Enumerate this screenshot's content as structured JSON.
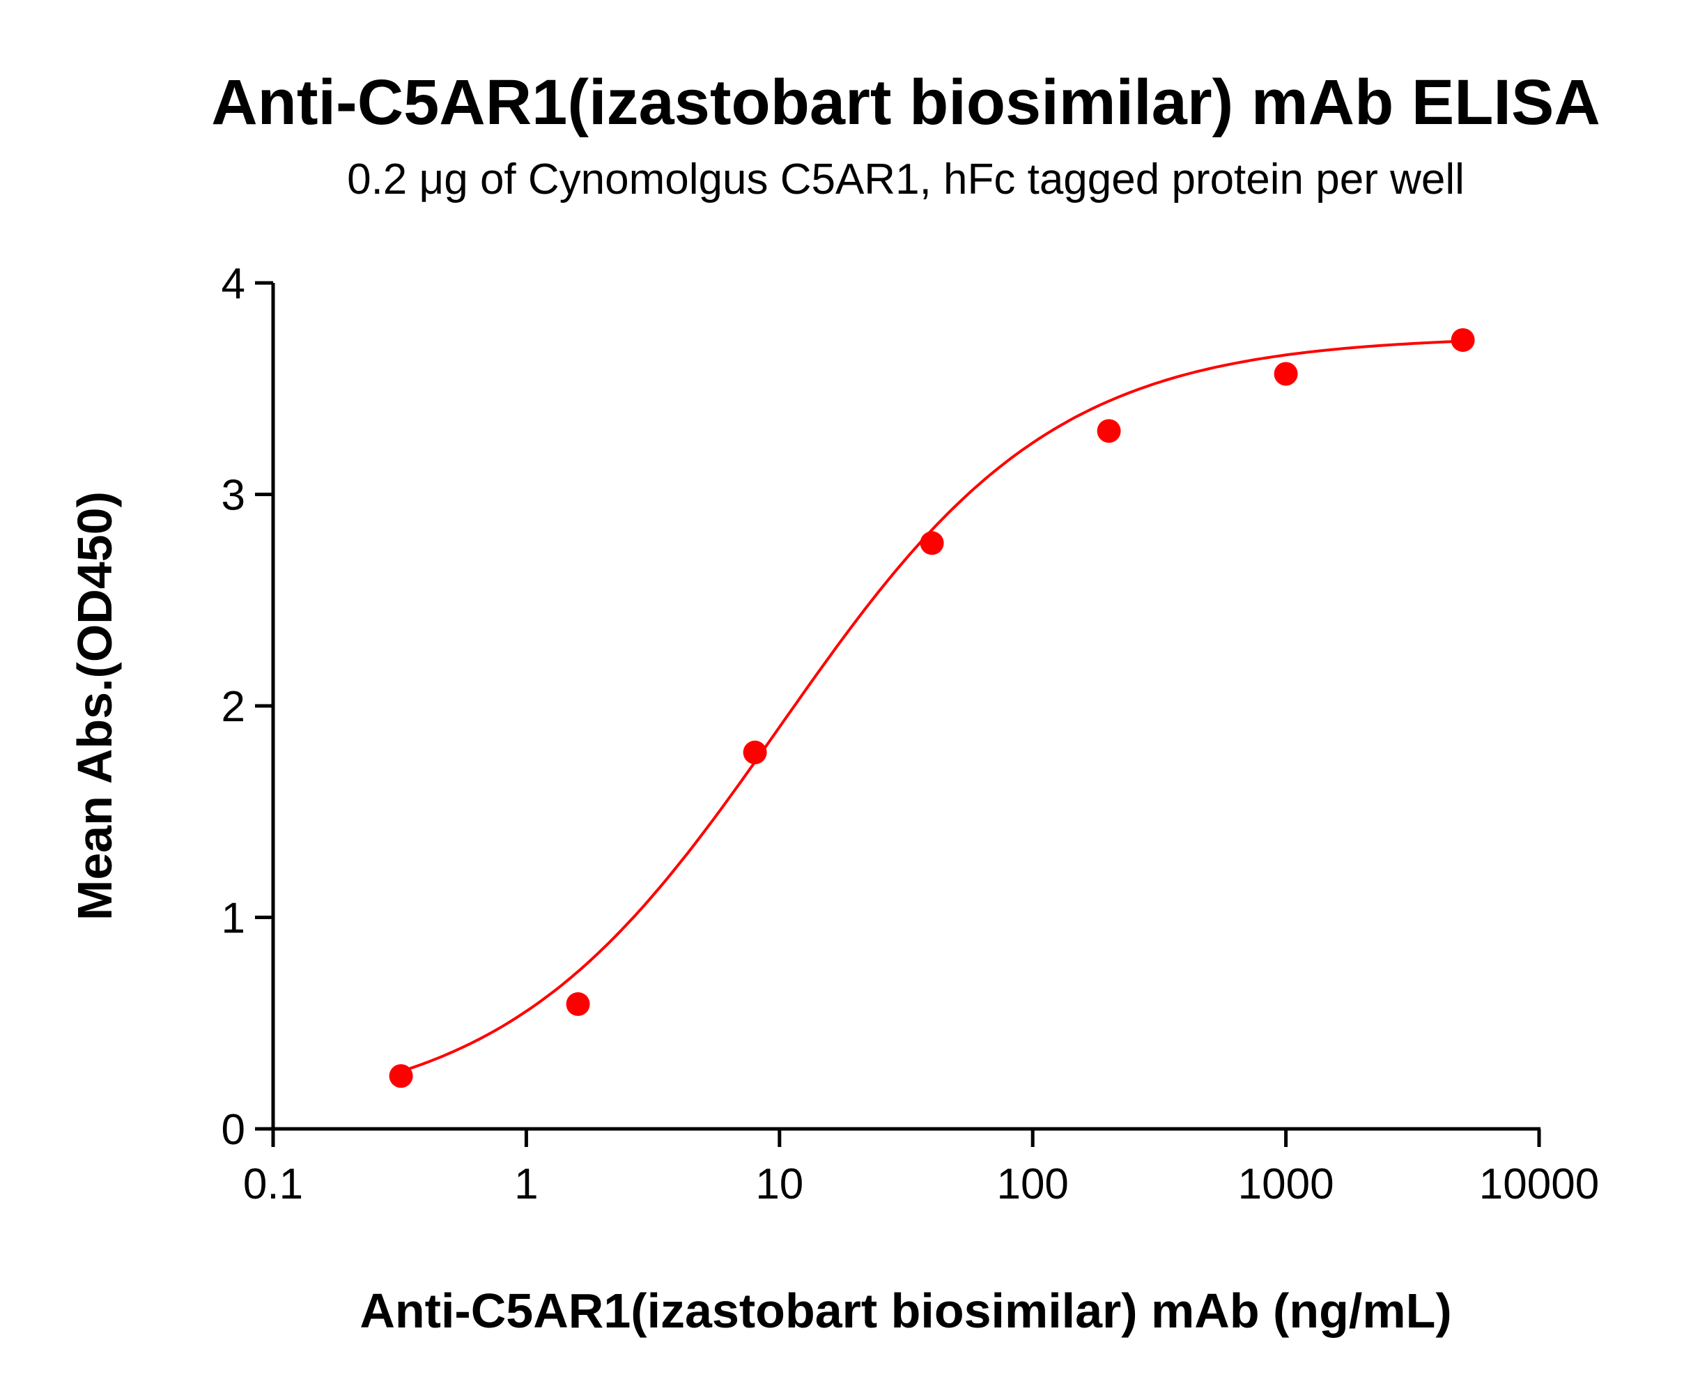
{
  "chart_data": {
    "type": "scatter",
    "title": "Anti-C5AR1(izastobart biosimilar) mAb ELISA",
    "subtitle": "0.2 μg of Cynomolgus C5AR1, hFc tagged protein per well",
    "xlabel": "Anti-C5AR1(izastobart biosimilar) mAb (ng/mL)",
    "ylabel": "Mean Abs.(OD450)",
    "x_scale": "log",
    "xlim": [
      0.1,
      10000
    ],
    "ylim": [
      0,
      4
    ],
    "x_ticks": [
      "0.1",
      "1",
      "10",
      "100",
      "1000",
      "10000"
    ],
    "y_ticks": [
      "0",
      "1",
      "2",
      "3",
      "4"
    ],
    "grid": false,
    "series": [
      {
        "x": [
          0.32,
          1.6,
          8,
          40,
          200,
          1000,
          5000
        ],
        "y": [
          0.25,
          0.59,
          1.78,
          2.77,
          3.3,
          3.57,
          3.73
        ],
        "color": "#ff0000",
        "fit": "sigmoidal 4PL curve"
      }
    ]
  }
}
